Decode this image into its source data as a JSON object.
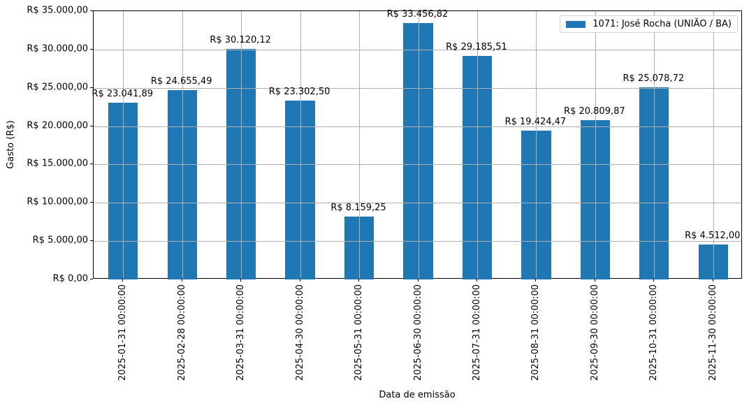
{
  "chart_data": {
    "type": "bar",
    "title": "",
    "xlabel": "Data de emissão",
    "ylabel": "Gasto (R$)",
    "ylim": [
      0,
      35000
    ],
    "grid": true,
    "legend_position": "upper right",
    "legend": [
      "1071: José Rocha (UNIÃO / BA)"
    ],
    "categories": [
      "2025-01-31 00:00:00",
      "2025-02-28 00:00:00",
      "2025-03-31 00:00:00",
      "2025-04-30 00:00:00",
      "2025-05-31 00:00:00",
      "2025-06-30 00:00:00",
      "2025-07-31 00:00:00",
      "2025-08-31 00:00:00",
      "2025-09-30 00:00:00",
      "2025-10-31 00:00:00",
      "2025-11-30 00:00:00"
    ],
    "series": [
      {
        "name": "1071: José Rocha (UNIÃO / BA)",
        "color": "#1f77b4",
        "values": [
          23041.89,
          24655.49,
          30120.12,
          23302.5,
          8159.25,
          33456.82,
          29185.51,
          19424.47,
          20809.87,
          25078.72,
          4512.0
        ],
        "labels": [
          "R$ 23.041,89",
          "R$ 24.655,49",
          "R$ 30.120,12",
          "R$ 23.302,50",
          "R$ 8.159,25",
          "R$ 33.456,82",
          "R$ 29.185,51",
          "R$ 19.424,47",
          "R$ 20.809,87",
          "R$ 25.078,72",
          "R$ 4.512,00"
        ]
      }
    ],
    "yticks": [
      0,
      5000,
      10000,
      15000,
      20000,
      25000,
      30000,
      35000
    ],
    "ytick_labels": [
      "R$ 0,00",
      "R$ 5.000,00",
      "R$ 10.000,00",
      "R$ 15.000,00",
      "R$ 20.000,00",
      "R$ 25.000,00",
      "R$ 30.000,00",
      "R$ 35.000,00"
    ]
  }
}
